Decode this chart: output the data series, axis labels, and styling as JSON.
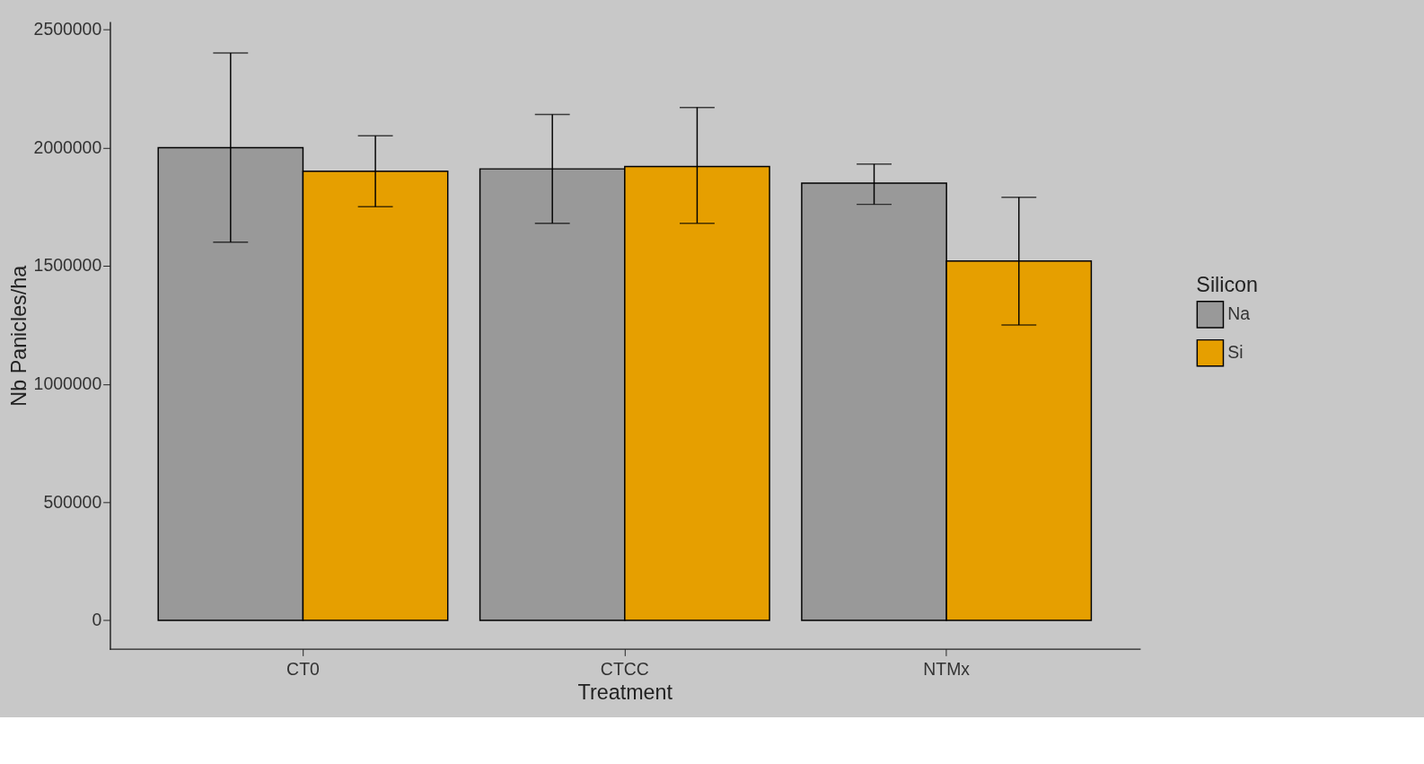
{
  "chart_data": {
    "type": "bar",
    "xlabel": "Treatment",
    "ylabel": "Nb Panicles/ha",
    "legend_title": "Silicon",
    "categories": [
      "CT0",
      "CTCC",
      "NTMx"
    ],
    "series": [
      {
        "name": "Na",
        "color": "#999999",
        "values": [
          2000000,
          1910000,
          1850000
        ],
        "errors": [
          [
            1600000,
            2400000
          ],
          [
            1680000,
            2140000
          ],
          [
            1760000,
            1930000
          ]
        ]
      },
      {
        "name": "Si",
        "color": "#e69f00",
        "values": [
          1900000,
          1920000,
          1520000
        ],
        "errors": [
          [
            1750000,
            2050000
          ],
          [
            1680000,
            2170000
          ],
          [
            1250000,
            1790000
          ]
        ]
      }
    ],
    "ylim": [
      -120000,
      2530000
    ],
    "yticks": [
      0,
      500000,
      1000000,
      1500000,
      2000000,
      2500000
    ],
    "grid": false,
    "legend": "right"
  }
}
